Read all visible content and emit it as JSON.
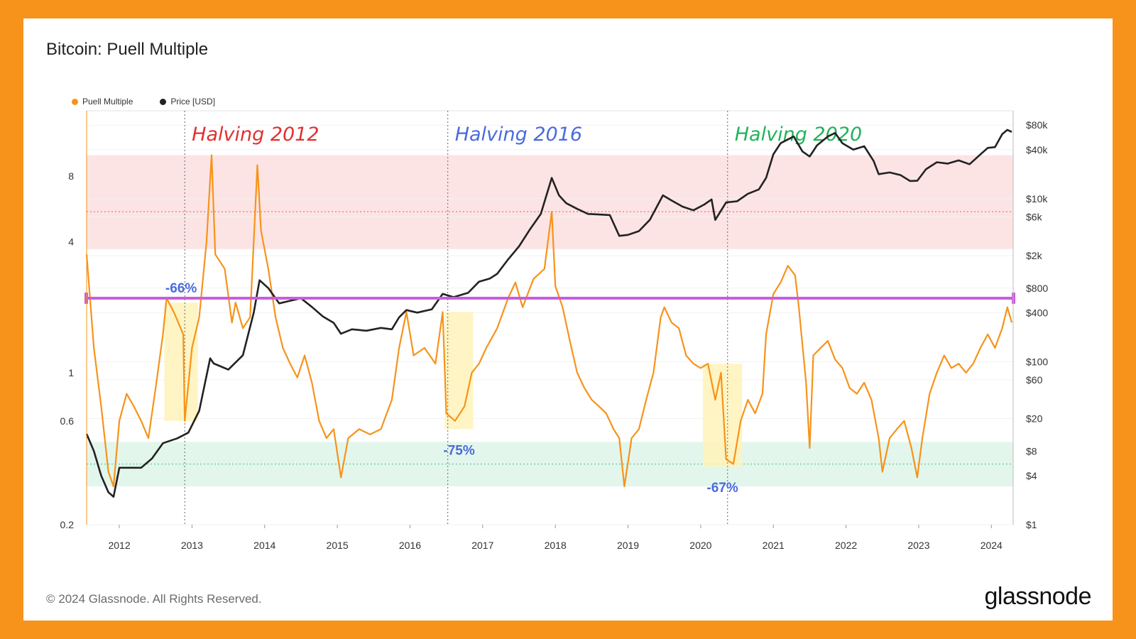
{
  "header": {
    "title": "Bitcoin: Puell Multiple"
  },
  "footer": {
    "copyright": "© 2024 Glassnode. All Rights Reserved.",
    "brand": "glassnode"
  },
  "colors": {
    "frame": "#F7931A",
    "puell": "#F7931A",
    "price": "#222222",
    "band_high": "#fde4e4",
    "band_low": "#e2f6ec",
    "trend_line": "#c95ddd",
    "highlight": "#fff2b8",
    "halving_2012": "#e03131",
    "halving_2016": "#4a6bdc",
    "halving_2020": "#22b35a",
    "pct_label": "#4a6bdc"
  },
  "chart_data": {
    "type": "line",
    "title": "Bitcoin: Puell Multiple",
    "legend": {
      "placement": "top-left",
      "items": [
        "Puell Multiple",
        "Price [USD]"
      ]
    },
    "x_ticks": [
      "2012",
      "2013",
      "2014",
      "2015",
      "2016",
      "2017",
      "2018",
      "2019",
      "2020",
      "2021",
      "2022",
      "2023",
      "2024"
    ],
    "x_range": [
      2011.55,
      2024.3
    ],
    "y_left": {
      "scale": "log",
      "range": [
        0.2,
        16
      ],
      "ticks": [
        {
          "value": 0.2,
          "label": "0.2"
        },
        {
          "value": 0.6,
          "label": "0.6"
        },
        {
          "value": 1,
          "label": "1"
        },
        {
          "value": 4,
          "label": "4"
        },
        {
          "value": 8,
          "label": "8"
        }
      ]
    },
    "y_right": {
      "scale": "log",
      "range": [
        1,
        120000
      ],
      "ticks": [
        {
          "value": 1,
          "label": "$1"
        },
        {
          "value": 4,
          "label": "$4"
        },
        {
          "value": 8,
          "label": "$8"
        },
        {
          "value": 20,
          "label": "$20"
        },
        {
          "value": 60,
          "label": "$60"
        },
        {
          "value": 100,
          "label": "$100"
        },
        {
          "value": 400,
          "label": "$400"
        },
        {
          "value": 800,
          "label": "$800"
        },
        {
          "value": 2000,
          "label": "$2k"
        },
        {
          "value": 6000,
          "label": "$6k"
        },
        {
          "value": 10000,
          "label": "$10k"
        },
        {
          "value": 40000,
          "label": "$40k"
        },
        {
          "value": 80000,
          "label": "$80k"
        }
      ]
    },
    "bands": [
      {
        "name": "high",
        "from": 3.7,
        "to": 10,
        "line": 5.5
      },
      {
        "name": "low",
        "from": 0.3,
        "to": 0.48,
        "line": 0.38
      }
    ],
    "trend_line_value": 2.2,
    "halvings": [
      {
        "x": 2012.9,
        "label": "Halving 2012",
        "color_key": "halving_2012"
      },
      {
        "x": 2016.52,
        "label": "Halving 2016",
        "color_key": "halving_2016"
      },
      {
        "x": 2020.37,
        "label": "Halving 2020",
        "color_key": "halving_2020"
      }
    ],
    "drawdowns": [
      {
        "x0": 2012.62,
        "x1": 2013.08,
        "y_top": 2.1,
        "y_bottom": 0.6,
        "label": "-66%",
        "label_pos": "above"
      },
      {
        "x0": 2016.48,
        "x1": 2016.87,
        "y_top": 1.9,
        "y_bottom": 0.55,
        "label": "-75%",
        "label_pos": "below"
      },
      {
        "x0": 2020.03,
        "x1": 2020.57,
        "y_top": 1.1,
        "y_bottom": 0.37,
        "label": "-67%",
        "label_pos": "below"
      }
    ],
    "series": [
      {
        "name": "Puell Multiple",
        "axis": "left",
        "color_key": "puell",
        "points": [
          [
            2011.55,
            3.5
          ],
          [
            2011.65,
            1.3
          ],
          [
            2011.75,
            0.7
          ],
          [
            2011.85,
            0.35
          ],
          [
            2011.92,
            0.3
          ],
          [
            2012.0,
            0.6
          ],
          [
            2012.1,
            0.8
          ],
          [
            2012.2,
            0.7
          ],
          [
            2012.3,
            0.6
          ],
          [
            2012.4,
            0.5
          ],
          [
            2012.5,
            0.85
          ],
          [
            2012.6,
            1.5
          ],
          [
            2012.65,
            2.2
          ],
          [
            2012.75,
            1.9
          ],
          [
            2012.88,
            1.5
          ],
          [
            2012.9,
            0.6
          ],
          [
            2013.0,
            1.3
          ],
          [
            2013.1,
            1.8
          ],
          [
            2013.2,
            4.0
          ],
          [
            2013.27,
            10.0
          ],
          [
            2013.32,
            3.5
          ],
          [
            2013.45,
            3.0
          ],
          [
            2013.55,
            1.7
          ],
          [
            2013.6,
            2.1
          ],
          [
            2013.7,
            1.6
          ],
          [
            2013.8,
            1.8
          ],
          [
            2013.9,
            9.0
          ],
          [
            2013.95,
            4.5
          ],
          [
            2014.05,
            3.0
          ],
          [
            2014.15,
            1.8
          ],
          [
            2014.25,
            1.3
          ],
          [
            2014.35,
            1.1
          ],
          [
            2014.45,
            0.95
          ],
          [
            2014.55,
            1.2
          ],
          [
            2014.65,
            0.9
          ],
          [
            2014.75,
            0.6
          ],
          [
            2014.85,
            0.5
          ],
          [
            2014.95,
            0.55
          ],
          [
            2015.05,
            0.33
          ],
          [
            2015.15,
            0.5
          ],
          [
            2015.3,
            0.55
          ],
          [
            2015.45,
            0.52
          ],
          [
            2015.6,
            0.55
          ],
          [
            2015.75,
            0.75
          ],
          [
            2015.85,
            1.3
          ],
          [
            2015.95,
            1.9
          ],
          [
            2016.05,
            1.2
          ],
          [
            2016.2,
            1.3
          ],
          [
            2016.35,
            1.1
          ],
          [
            2016.45,
            1.9
          ],
          [
            2016.5,
            0.65
          ],
          [
            2016.62,
            0.6
          ],
          [
            2016.75,
            0.7
          ],
          [
            2016.85,
            1.0
          ],
          [
            2016.95,
            1.1
          ],
          [
            2017.05,
            1.3
          ],
          [
            2017.2,
            1.6
          ],
          [
            2017.35,
            2.2
          ],
          [
            2017.45,
            2.6
          ],
          [
            2017.55,
            2.0
          ],
          [
            2017.7,
            2.7
          ],
          [
            2017.85,
            3.0
          ],
          [
            2017.95,
            5.5
          ],
          [
            2018.0,
            2.5
          ],
          [
            2018.1,
            2.0
          ],
          [
            2018.2,
            1.4
          ],
          [
            2018.3,
            1.0
          ],
          [
            2018.4,
            0.85
          ],
          [
            2018.5,
            0.75
          ],
          [
            2018.6,
            0.7
          ],
          [
            2018.7,
            0.65
          ],
          [
            2018.8,
            0.55
          ],
          [
            2018.88,
            0.5
          ],
          [
            2018.95,
            0.3
          ],
          [
            2019.05,
            0.5
          ],
          [
            2019.15,
            0.55
          ],
          [
            2019.25,
            0.75
          ],
          [
            2019.35,
            1.0
          ],
          [
            2019.45,
            1.8
          ],
          [
            2019.5,
            2.0
          ],
          [
            2019.6,
            1.7
          ],
          [
            2019.7,
            1.6
          ],
          [
            2019.8,
            1.2
          ],
          [
            2019.9,
            1.1
          ],
          [
            2020.0,
            1.05
          ],
          [
            2020.1,
            1.1
          ],
          [
            2020.2,
            0.75
          ],
          [
            2020.28,
            1.0
          ],
          [
            2020.35,
            0.4
          ],
          [
            2020.45,
            0.38
          ],
          [
            2020.55,
            0.6
          ],
          [
            2020.65,
            0.75
          ],
          [
            2020.75,
            0.65
          ],
          [
            2020.85,
            0.8
          ],
          [
            2020.9,
            1.5
          ],
          [
            2021.0,
            2.3
          ],
          [
            2021.1,
            2.6
          ],
          [
            2021.2,
            3.1
          ],
          [
            2021.3,
            2.8
          ],
          [
            2021.35,
            2.0
          ],
          [
            2021.45,
            0.9
          ],
          [
            2021.5,
            0.45
          ],
          [
            2021.55,
            1.2
          ],
          [
            2021.65,
            1.3
          ],
          [
            2021.75,
            1.4
          ],
          [
            2021.85,
            1.15
          ],
          [
            2021.95,
            1.05
          ],
          [
            2022.05,
            0.85
          ],
          [
            2022.15,
            0.8
          ],
          [
            2022.25,
            0.9
          ],
          [
            2022.35,
            0.75
          ],
          [
            2022.45,
            0.5
          ],
          [
            2022.5,
            0.35
          ],
          [
            2022.6,
            0.5
          ],
          [
            2022.7,
            0.55
          ],
          [
            2022.8,
            0.6
          ],
          [
            2022.9,
            0.45
          ],
          [
            2022.98,
            0.33
          ],
          [
            2023.05,
            0.5
          ],
          [
            2023.15,
            0.8
          ],
          [
            2023.25,
            1.0
          ],
          [
            2023.35,
            1.2
          ],
          [
            2023.45,
            1.05
          ],
          [
            2023.55,
            1.1
          ],
          [
            2023.65,
            1.0
          ],
          [
            2023.75,
            1.1
          ],
          [
            2023.85,
            1.3
          ],
          [
            2023.95,
            1.5
          ],
          [
            2024.05,
            1.3
          ],
          [
            2024.15,
            1.6
          ],
          [
            2024.22,
            2.0
          ],
          [
            2024.28,
            1.7
          ]
        ]
      },
      {
        "name": "Price [USD]",
        "axis": "right",
        "color_key": "price",
        "points": [
          [
            2011.55,
            13
          ],
          [
            2011.65,
            8
          ],
          [
            2011.75,
            4
          ],
          [
            2011.85,
            2.5
          ],
          [
            2011.92,
            2.2
          ],
          [
            2012.0,
            5
          ],
          [
            2012.15,
            5
          ],
          [
            2012.3,
            5
          ],
          [
            2012.45,
            6.5
          ],
          [
            2012.6,
            10
          ],
          [
            2012.8,
            11.5
          ],
          [
            2012.95,
            13.5
          ],
          [
            2013.1,
            25
          ],
          [
            2013.25,
            110
          ],
          [
            2013.3,
            95
          ],
          [
            2013.5,
            80
          ],
          [
            2013.7,
            120
          ],
          [
            2013.85,
            400
          ],
          [
            2013.93,
            1000
          ],
          [
            2014.05,
            800
          ],
          [
            2014.2,
            520
          ],
          [
            2014.35,
            560
          ],
          [
            2014.5,
            600
          ],
          [
            2014.65,
            470
          ],
          [
            2014.8,
            360
          ],
          [
            2014.95,
            300
          ],
          [
            2015.05,
            220
          ],
          [
            2015.2,
            250
          ],
          [
            2015.4,
            240
          ],
          [
            2015.6,
            260
          ],
          [
            2015.75,
            250
          ],
          [
            2015.85,
            350
          ],
          [
            2015.95,
            430
          ],
          [
            2016.1,
            400
          ],
          [
            2016.3,
            440
          ],
          [
            2016.45,
            680
          ],
          [
            2016.6,
            620
          ],
          [
            2016.8,
            700
          ],
          [
            2016.95,
            960
          ],
          [
            2017.1,
            1050
          ],
          [
            2017.2,
            1200
          ],
          [
            2017.35,
            1800
          ],
          [
            2017.5,
            2600
          ],
          [
            2017.65,
            4200
          ],
          [
            2017.8,
            6500
          ],
          [
            2017.95,
            18000
          ],
          [
            2018.05,
            11000
          ],
          [
            2018.15,
            8800
          ],
          [
            2018.3,
            7500
          ],
          [
            2018.45,
            6500
          ],
          [
            2018.6,
            6400
          ],
          [
            2018.75,
            6300
          ],
          [
            2018.88,
            3500
          ],
          [
            2019.0,
            3600
          ],
          [
            2019.15,
            4000
          ],
          [
            2019.3,
            5500
          ],
          [
            2019.48,
            11000
          ],
          [
            2019.6,
            9500
          ],
          [
            2019.75,
            8000
          ],
          [
            2019.9,
            7200
          ],
          [
            2020.05,
            8500
          ],
          [
            2020.15,
            9800
          ],
          [
            2020.2,
            5500
          ],
          [
            2020.35,
            9000
          ],
          [
            2020.5,
            9300
          ],
          [
            2020.65,
            11500
          ],
          [
            2020.8,
            13000
          ],
          [
            2020.9,
            18000
          ],
          [
            2021.0,
            35000
          ],
          [
            2021.1,
            48000
          ],
          [
            2021.28,
            58000
          ],
          [
            2021.4,
            38000
          ],
          [
            2021.5,
            33000
          ],
          [
            2021.6,
            45000
          ],
          [
            2021.75,
            58000
          ],
          [
            2021.85,
            64000
          ],
          [
            2021.95,
            48000
          ],
          [
            2022.1,
            40000
          ],
          [
            2022.25,
            44000
          ],
          [
            2022.38,
            29000
          ],
          [
            2022.45,
            20000
          ],
          [
            2022.6,
            21000
          ],
          [
            2022.75,
            19500
          ],
          [
            2022.88,
            16500
          ],
          [
            2022.98,
            16600
          ],
          [
            2023.1,
            23000
          ],
          [
            2023.25,
            28000
          ],
          [
            2023.4,
            27000
          ],
          [
            2023.55,
            29500
          ],
          [
            2023.7,
            26500
          ],
          [
            2023.85,
            35000
          ],
          [
            2023.95,
            42000
          ],
          [
            2024.05,
            43000
          ],
          [
            2024.15,
            62000
          ],
          [
            2024.22,
            70000
          ],
          [
            2024.28,
            66000
          ]
        ]
      }
    ]
  }
}
